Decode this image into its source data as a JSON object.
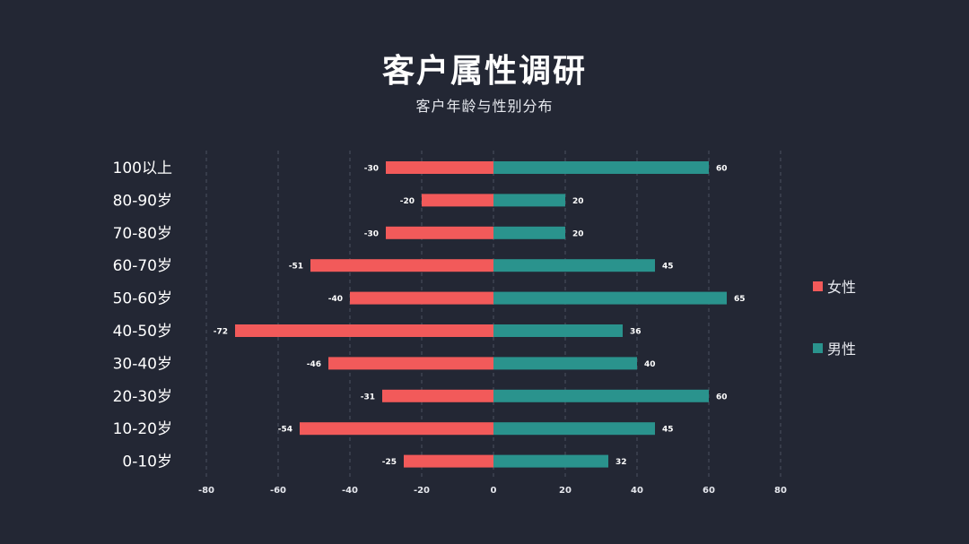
{
  "header": {
    "title": "客户属性调研",
    "subtitle": "客户年龄与性别分布"
  },
  "legend": {
    "items": [
      {
        "label": "女性",
        "color": "#f25a5a"
      },
      {
        "label": "男性",
        "color": "#2a938d"
      }
    ]
  },
  "colors": {
    "background": "#232734",
    "female": "#f25a5a",
    "male": "#2a938d",
    "grid": "#4b5060",
    "label_text": "#ffffff"
  },
  "chart_data": {
    "type": "bar",
    "orientation": "horizontal",
    "title": "客户属性调研",
    "subtitle": "客户年龄与性别分布",
    "xlabel": "",
    "ylabel": "",
    "xlim": [
      -80,
      80
    ],
    "xticks": [
      -80,
      -60,
      -40,
      -20,
      0,
      20,
      40,
      60,
      80
    ],
    "grid": "vertical dashed",
    "legend_position": "right",
    "categories": [
      "100以上",
      "80-90岁",
      "70-80岁",
      "60-70岁",
      "50-60岁",
      "40-50岁",
      "30-40岁",
      "20-30岁",
      "10-20岁",
      "0-10岁"
    ],
    "series": [
      {
        "name": "女性",
        "color": "#f25a5a",
        "values": [
          -30,
          -20,
          -30,
          -51,
          -40,
          -72,
          -46,
          -31,
          -54,
          -25
        ]
      },
      {
        "name": "男性",
        "color": "#2a938d",
        "values": [
          60,
          20,
          20,
          45,
          65,
          36,
          40,
          60,
          45,
          32
        ]
      }
    ]
  }
}
